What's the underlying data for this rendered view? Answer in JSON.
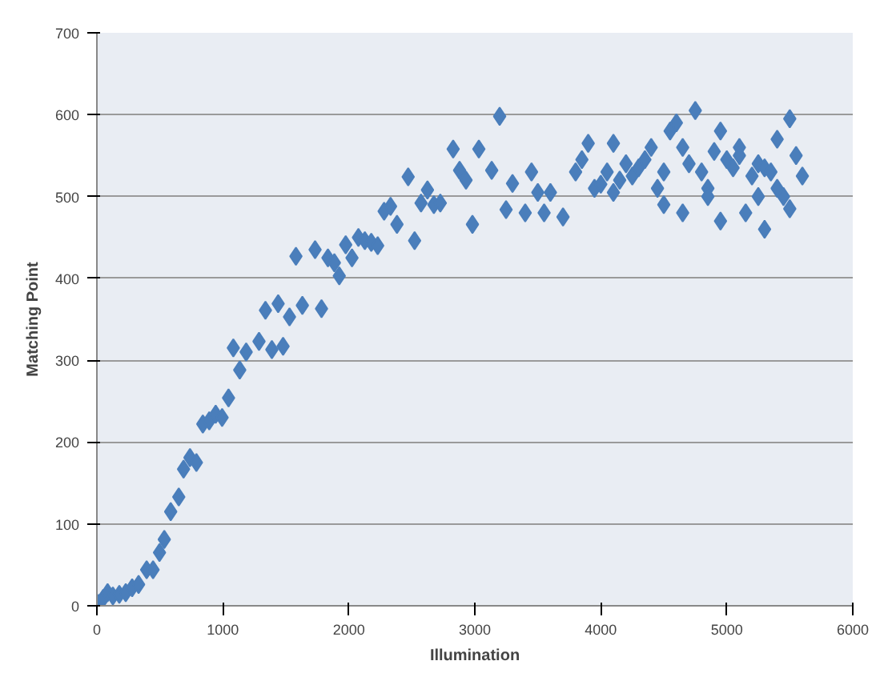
{
  "chart_data": {
    "type": "scatter",
    "xlabel": "Illumination",
    "ylabel": "Matching Point",
    "xlim": [
      0,
      6000
    ],
    "xticks": [
      0,
      1000,
      2000,
      3000,
      4000,
      5000,
      6000
    ],
    "ylim": [
      0,
      700
    ],
    "yticks": [
      0,
      100,
      200,
      300,
      400,
      500,
      600,
      700
    ],
    "grid": "y",
    "marker": "diamond",
    "series": [
      {
        "color": "#4a7ebb",
        "x": [
          15,
          50,
          85,
          127,
          178,
          229,
          280,
          331,
          395,
          446,
          497,
          535,
          586,
          650,
          688,
          739,
          790,
          841,
          892,
          943,
          994,
          1045,
          1083,
          1134,
          1185,
          1287,
          1338,
          1389,
          1439,
          1478,
          1529,
          1580,
          1631,
          1732,
          1783,
          1834,
          1885,
          1924,
          1975,
          2025,
          2076,
          2127,
          2178,
          2229,
          2280,
          2331,
          2382,
          2471,
          2522,
          2573,
          2624,
          2675,
          2726,
          2828,
          2879,
          2930,
          2981,
          3032,
          3134,
          3197,
          3248,
          3299,
          3400,
          3450,
          3500,
          3550,
          3600,
          3700,
          3800,
          3850,
          3900,
          3950,
          4000,
          4050,
          4100,
          4100,
          4150,
          4200,
          4250,
          4300,
          4350,
          4400,
          4450,
          4500,
          4500,
          4550,
          4600,
          4650,
          4650,
          4700,
          4750,
          4800,
          4850,
          4850,
          4900,
          4950,
          4950,
          5000,
          5050,
          5100,
          5100,
          5150,
          5200,
          5250,
          5250,
          5300,
          5300,
          5350,
          5400,
          5400,
          5450,
          5500,
          5500,
          5550,
          5600
        ],
        "values": [
          3,
          9,
          16,
          12,
          14,
          16,
          22,
          26,
          44,
          44,
          65,
          81,
          115,
          133,
          167,
          181,
          175,
          222,
          226,
          234,
          230,
          254,
          315,
          288,
          310,
          323,
          361,
          313,
          369,
          317,
          353,
          427,
          367,
          435,
          363,
          425,
          419,
          403,
          441,
          425,
          450,
          446,
          444,
          440,
          482,
          488,
          466,
          524,
          446,
          492,
          508,
          490,
          492,
          558,
          532,
          520,
          466,
          558,
          532,
          598,
          484,
          516,
          480,
          530,
          505,
          480,
          505,
          475,
          530,
          545,
          565,
          510,
          515,
          530,
          565,
          505,
          520,
          540,
          525,
          535,
          545,
          560,
          510,
          530,
          490,
          580,
          590,
          560,
          480,
          540,
          605,
          530,
          510,
          500,
          555,
          470,
          580,
          545,
          535,
          560,
          550,
          480,
          525,
          540,
          500,
          460,
          535,
          530,
          510,
          570,
          500,
          595,
          485,
          550,
          525
        ]
      }
    ]
  }
}
